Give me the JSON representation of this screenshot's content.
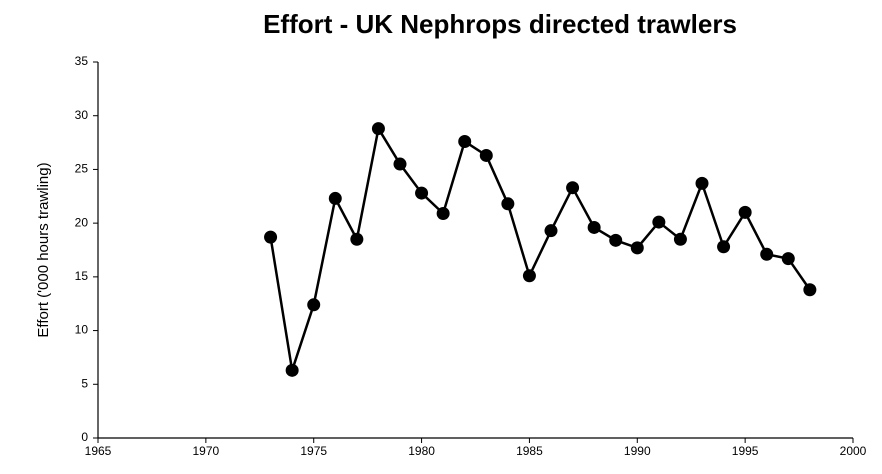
{
  "chart_data": {
    "type": "line",
    "title": "Effort - UK Nephrops directed trawlers",
    "y_label": "Effort ('000 hours trawling)",
    "x": [
      1973,
      1974,
      1975,
      1976,
      1977,
      1978,
      1979,
      1980,
      1981,
      1982,
      1983,
      1984,
      1985,
      1986,
      1987,
      1988,
      1989,
      1990,
      1991,
      1992,
      1993,
      1994,
      1995,
      1996,
      1997,
      1998
    ],
    "series": [
      {
        "color": "#000000",
        "values": [
          18.7,
          6.3,
          12.4,
          22.3,
          18.5,
          28.8,
          25.5,
          22.8,
          20.9,
          27.6,
          26.3,
          21.8,
          15.1,
          19.3,
          23.3,
          19.6,
          18.4,
          17.7,
          20.1,
          18.5,
          23.7,
          17.8,
          21.0,
          17.1,
          16.7,
          13.8
        ]
      }
    ],
    "xlim": [
      1965,
      2000
    ],
    "xticks": [
      1965,
      1970,
      1975,
      1980,
      1985,
      1990,
      1995,
      2000
    ],
    "ylim": [
      0,
      35
    ],
    "yticks": [
      0,
      5,
      10,
      15,
      20,
      25,
      30,
      35
    ],
    "grid": false
  }
}
